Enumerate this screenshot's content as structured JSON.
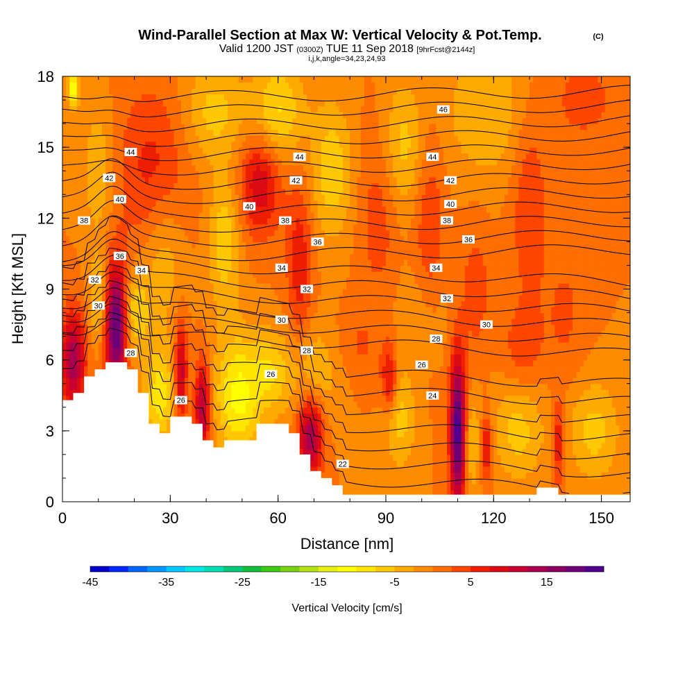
{
  "title": {
    "main": "Wind-Parallel Section at Max W: Vertical Velocity & Pot.Temp.",
    "copyright": "(C)",
    "valid_prefix": "Valid 1200 JST",
    "valid_z": "(0300Z)",
    "valid_date": "TUE 11 Sep 2018",
    "forecast": "[9hrFcst@2144z]",
    "indices": "i,j,k,angle=34,23,24,93"
  },
  "chart_data": {
    "type": "heatmap",
    "xlabel": "Distance [nm]",
    "ylabel": "Height [Kft MSL]",
    "xlim": [
      0,
      158
    ],
    "ylim": [
      0,
      18
    ],
    "x_ticks": [
      0,
      30,
      60,
      90,
      120,
      150
    ],
    "y_ticks": [
      0,
      3,
      6,
      9,
      12,
      15,
      18
    ],
    "colorbar": {
      "title": "Vertical Velocity [cm/s]",
      "min": -45,
      "max": 22.5,
      "step": 2.5,
      "tick_labels": [
        -45,
        -35,
        -25,
        -15,
        -5,
        5,
        15
      ],
      "colors": [
        "#0000c8",
        "#0028ff",
        "#0064ff",
        "#0096ff",
        "#00c8ff",
        "#00e6e6",
        "#00dcb4",
        "#00c878",
        "#14be3c",
        "#3cc814",
        "#78d214",
        "#b4e114",
        "#e6f014",
        "#ffff00",
        "#ffe600",
        "#ffc800",
        "#ffaa00",
        "#ff8c00",
        "#ff6e00",
        "#ff4600",
        "#f01e00",
        "#dc0a14",
        "#c80032",
        "#aa0050",
        "#8c0064",
        "#6e0078",
        "#50008c"
      ]
    },
    "terrain": {
      "x": [
        0,
        3,
        6,
        9,
        12,
        15,
        18,
        21,
        24,
        27,
        30,
        33,
        36,
        39,
        42,
        45,
        48,
        51,
        54,
        57,
        60,
        63,
        66,
        69,
        72,
        75,
        78,
        81,
        84,
        87,
        90,
        93,
        96,
        99,
        102,
        105,
        108,
        111,
        114,
        117,
        120,
        123,
        126,
        129,
        132,
        135,
        138,
        141,
        144,
        147,
        150,
        153,
        156,
        158
      ],
      "height": [
        4.3,
        4.6,
        5.3,
        5.6,
        5.9,
        5.9,
        5.6,
        4.6,
        3.3,
        2.9,
        3.6,
        3.6,
        3.3,
        2.6,
        2.3,
        2.6,
        2.6,
        2.6,
        3.3,
        3.3,
        3.3,
        2.9,
        2.0,
        1.3,
        1.0,
        0.7,
        0.3,
        0.3,
        0.3,
        0.3,
        0.3,
        0.3,
        0.3,
        0.3,
        0.3,
        0.3,
        0.3,
        0.3,
        0.3,
        0.3,
        0.3,
        0.3,
        0.3,
        0.3,
        0.6,
        0.6,
        0.3,
        0.3,
        0.3,
        0.3,
        0.3,
        0.3,
        0.3,
        0.3
      ]
    },
    "velocity_field": {
      "background": 0,
      "features": [
        {
          "x": 15,
          "y": 7.5,
          "sx": 2.2,
          "sy": 1.8,
          "value": 22
        },
        {
          "x": 3,
          "y": 6.0,
          "sx": 2.5,
          "sy": 1.5,
          "value": 14
        },
        {
          "x": 10,
          "y": 8.5,
          "sx": 2.0,
          "sy": 1.4,
          "value": -6
        },
        {
          "x": 20,
          "y": 8.0,
          "sx": 3.0,
          "sy": 1.2,
          "value": -8
        },
        {
          "x": 27,
          "y": 4.5,
          "sx": 3.0,
          "sy": 1.5,
          "value": -9
        },
        {
          "x": 33,
          "y": 5.5,
          "sx": 1.2,
          "sy": 1.5,
          "value": 12
        },
        {
          "x": 39,
          "y": 4.0,
          "sx": 1.5,
          "sy": 1.4,
          "value": 14
        },
        {
          "x": 49,
          "y": 4.5,
          "sx": 4.5,
          "sy": 1.8,
          "value": -11
        },
        {
          "x": 58,
          "y": 5.5,
          "sx": 3.5,
          "sy": 1.2,
          "value": -6
        },
        {
          "x": 69,
          "y": 2.8,
          "sx": 2.5,
          "sy": 1.2,
          "value": 15
        },
        {
          "x": 70,
          "y": 5.5,
          "sx": 6.0,
          "sy": 1.5,
          "value": -5
        },
        {
          "x": 91,
          "y": 5.2,
          "sx": 1.5,
          "sy": 1.0,
          "value": 9
        },
        {
          "x": 94,
          "y": 3.5,
          "sx": 3.0,
          "sy": 1.5,
          "value": -6
        },
        {
          "x": 110,
          "y": 3.0,
          "sx": 1.5,
          "sy": 2.3,
          "value": 22
        },
        {
          "x": 114,
          "y": 2.5,
          "sx": 1.5,
          "sy": 1.5,
          "value": -5
        },
        {
          "x": 118,
          "y": 2.3,
          "sx": 1.0,
          "sy": 1.0,
          "value": 9
        },
        {
          "x": 127,
          "y": 3.0,
          "sx": 5.0,
          "sy": 1.5,
          "value": -6
        },
        {
          "x": 138,
          "y": 2.5,
          "sx": 1.2,
          "sy": 1.3,
          "value": 8
        },
        {
          "x": 148,
          "y": 3.0,
          "sx": 5.0,
          "sy": 1.5,
          "value": -6
        },
        {
          "x": 66,
          "y": 10.0,
          "sx": 2.5,
          "sy": 2.5,
          "value": 7
        },
        {
          "x": 55,
          "y": 13.5,
          "sx": 4.0,
          "sy": 1.5,
          "value": 10
        },
        {
          "x": 25,
          "y": 14.0,
          "sx": 7.0,
          "sy": 2.5,
          "value": 6
        },
        {
          "x": 28,
          "y": 10.5,
          "sx": 4.0,
          "sy": 2.0,
          "value": -5
        },
        {
          "x": 45,
          "y": 11.0,
          "sx": 3.0,
          "sy": 2.0,
          "value": -7
        },
        {
          "x": 42,
          "y": 16.5,
          "sx": 6.0,
          "sy": 1.5,
          "value": -6
        },
        {
          "x": 60,
          "y": 16.5,
          "sx": 5.0,
          "sy": 1.5,
          "value": -8
        },
        {
          "x": 75,
          "y": 14.0,
          "sx": 4.0,
          "sy": 2.0,
          "value": -7
        },
        {
          "x": 88,
          "y": 12.0,
          "sx": 4.0,
          "sy": 2.5,
          "value": 4
        },
        {
          "x": 95,
          "y": 15.0,
          "sx": 4.0,
          "sy": 2.0,
          "value": -6
        },
        {
          "x": 102,
          "y": 11.5,
          "sx": 3.0,
          "sy": 3.0,
          "value": 5
        },
        {
          "x": 115,
          "y": 9.0,
          "sx": 3.0,
          "sy": 2.0,
          "value": 4
        },
        {
          "x": 130,
          "y": 12.5,
          "sx": 3.5,
          "sy": 3.0,
          "value": 5
        },
        {
          "x": 140,
          "y": 8.0,
          "sx": 4.0,
          "sy": 2.0,
          "value": 3
        },
        {
          "x": 128,
          "y": 6.5,
          "sx": 4.0,
          "sy": 1.2,
          "value": 4
        },
        {
          "x": 118,
          "y": 16.5,
          "sx": 8.0,
          "sy": 2.0,
          "value": -5
        },
        {
          "x": 145,
          "y": 17.0,
          "sx": 6.0,
          "sy": 1.2,
          "value": 4
        },
        {
          "x": 100,
          "y": 8.0,
          "sx": 5.0,
          "sy": 1.5,
          "value": -3
        },
        {
          "x": 3,
          "y": 17.5,
          "sx": 1.0,
          "sy": 0.6,
          "value": -13
        },
        {
          "x": 10,
          "y": 14.0,
          "sx": 3.0,
          "sy": 2.0,
          "value": -5
        },
        {
          "x": 82,
          "y": 6.5,
          "sx": 5.0,
          "sy": 1.2,
          "value": 3
        }
      ]
    },
    "isentropes": {
      "levels": [
        22,
        23,
        24,
        25,
        26,
        27,
        28,
        29,
        30,
        31,
        32,
        33,
        34,
        35,
        36,
        37,
        38,
        39,
        40,
        41,
        42,
        43,
        44,
        45,
        46
      ],
      "labels": [
        {
          "text": "46",
          "x": 106,
          "y": 16.6
        },
        {
          "text": "44",
          "x": 19,
          "y": 14.8
        },
        {
          "text": "44",
          "x": 66,
          "y": 14.6
        },
        {
          "text": "44",
          "x": 103,
          "y": 14.6
        },
        {
          "text": "42",
          "x": 13,
          "y": 13.7
        },
        {
          "text": "42",
          "x": 65,
          "y": 13.6
        },
        {
          "text": "42",
          "x": 108,
          "y": 13.6
        },
        {
          "text": "40",
          "x": 16,
          "y": 12.8
        },
        {
          "text": "40",
          "x": 52,
          "y": 12.5
        },
        {
          "text": "40",
          "x": 108,
          "y": 12.6
        },
        {
          "text": "38",
          "x": 6,
          "y": 11.9
        },
        {
          "text": "38",
          "x": 62,
          "y": 11.9
        },
        {
          "text": "38",
          "x": 107,
          "y": 11.9
        },
        {
          "text": "36",
          "x": 16,
          "y": 10.4
        },
        {
          "text": "36",
          "x": 71,
          "y": 11.0
        },
        {
          "text": "36",
          "x": 113,
          "y": 11.1
        },
        {
          "text": "34",
          "x": 22,
          "y": 9.8
        },
        {
          "text": "34",
          "x": 61,
          "y": 9.9
        },
        {
          "text": "34",
          "x": 104,
          "y": 9.9
        },
        {
          "text": "32",
          "x": 9,
          "y": 9.4
        },
        {
          "text": "32",
          "x": 68,
          "y": 9.0
        },
        {
          "text": "32",
          "x": 107,
          "y": 8.6
        },
        {
          "text": "30",
          "x": 10,
          "y": 8.3
        },
        {
          "text": "30",
          "x": 61,
          "y": 7.7
        },
        {
          "text": "30",
          "x": 118,
          "y": 7.5
        },
        {
          "text": "28",
          "x": 19,
          "y": 6.3
        },
        {
          "text": "28",
          "x": 68,
          "y": 6.4
        },
        {
          "text": "28",
          "x": 104,
          "y": 6.9
        },
        {
          "text": "26",
          "x": 33,
          "y": 4.3
        },
        {
          "text": "26",
          "x": 58,
          "y": 5.4
        },
        {
          "text": "26",
          "x": 100,
          "y": 5.8
        },
        {
          "text": "24",
          "x": 103,
          "y": 4.5
        },
        {
          "text": "22",
          "x": 78,
          "y": 1.6
        }
      ]
    }
  }
}
